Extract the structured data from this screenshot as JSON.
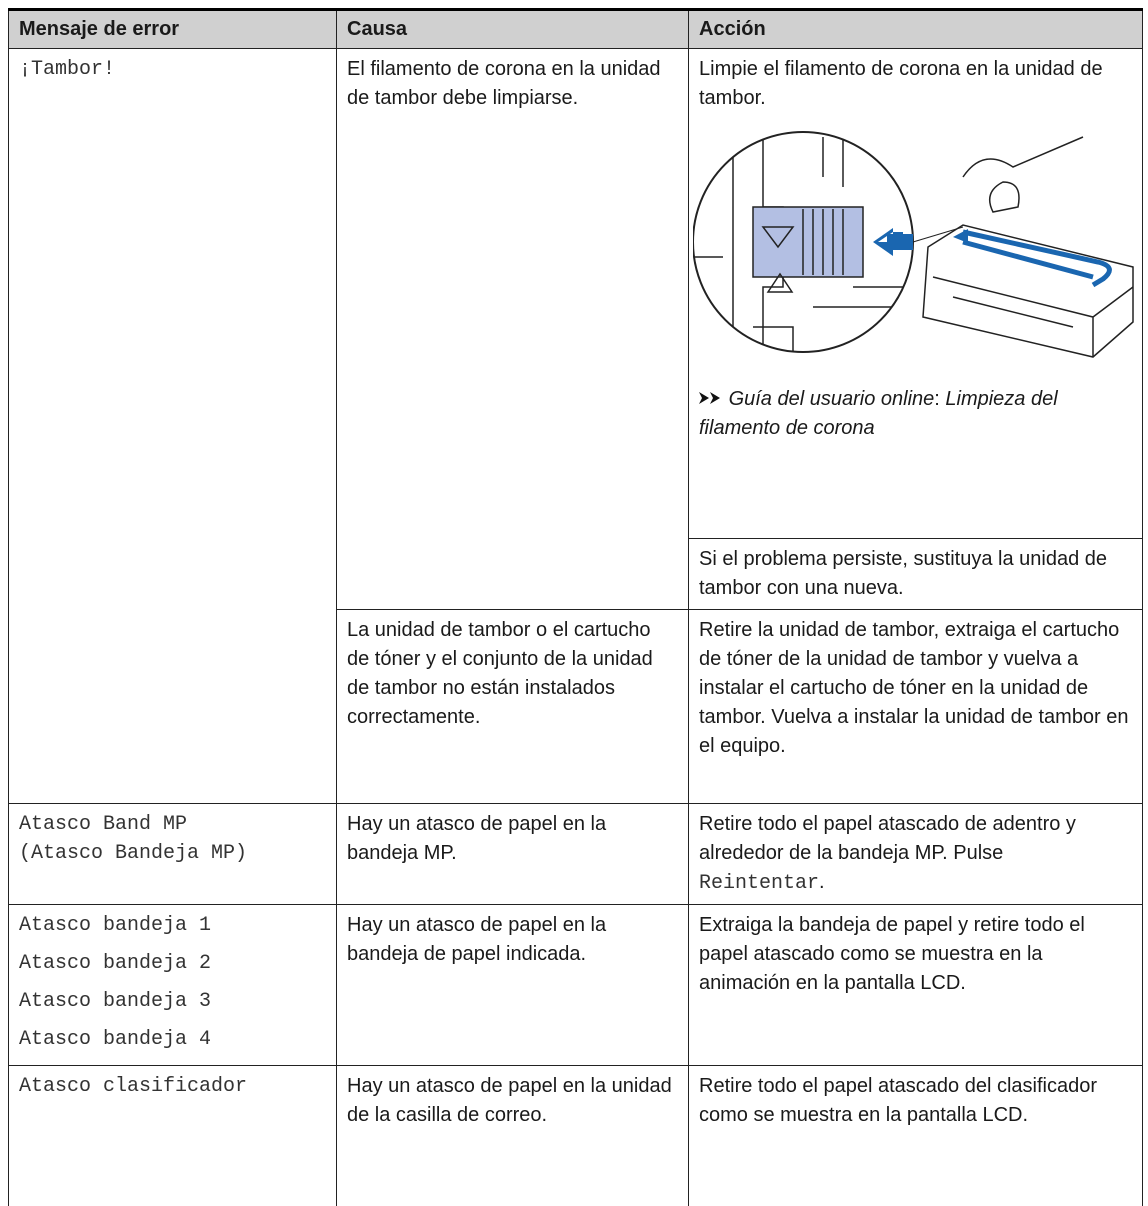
{
  "table": {
    "header": [
      "Mensaje de error",
      "Causa",
      "Acción"
    ],
    "rows": [
      {
        "message": "¡Tambor!",
        "cause": "El filamento de corona en la unidad de tambor debe limpiarse.",
        "action": "Limpie el filamento de corona en la unidad de tambor.",
        "reference": {
          "guide": "Guía del usuario online",
          "separator": ":",
          "topic": "Limpieza del filamento de corona"
        },
        "note": "Si el problema persiste, sustituya la unidad de tambor con una nueva."
      },
      {
        "cause": "La unidad de tambor o el cartucho de tóner y el conjunto de la unidad de tambor no están instalados correctamente.",
        "action": "Retire la unidad de tambor, extraiga el cartucho de tóner de la unidad de tambor y vuelva a instalar el cartucho de tóner en la unidad de tambor. Vuelva a instalar la unidad de tambor en el equipo."
      },
      {
        "message": [
          "Atasco Band MP",
          "(Atasco Bandeja MP)"
        ],
        "cause": "Hay un atasco de papel en la bandeja MP.",
        "action": "Retire todo el papel atascado de adentro y alrededor de la bandeja MP.",
        "instruction": {
          "verb": "Pulse",
          "button": "Reintentar",
          "end": "."
        }
      },
      {
        "message": [
          "Atasco bandeja 1",
          "Atasco bandeja 2",
          "Atasco bandeja 3",
          "Atasco bandeja 4"
        ],
        "cause": "Hay un atasco de papel en la bandeja de papel indicada.",
        "action": "Extraiga la bandeja de papel y retire todo el papel atascado como se muestra en la animación en la pantalla LCD."
      },
      {
        "message": "Atasco clasificador",
        "cause": "Hay un atasco de papel en la unidad de la casilla de correo.",
        "action": "Retire todo el papel atascado del clasificador como se muestra en la pantalla LCD."
      }
    ]
  }
}
